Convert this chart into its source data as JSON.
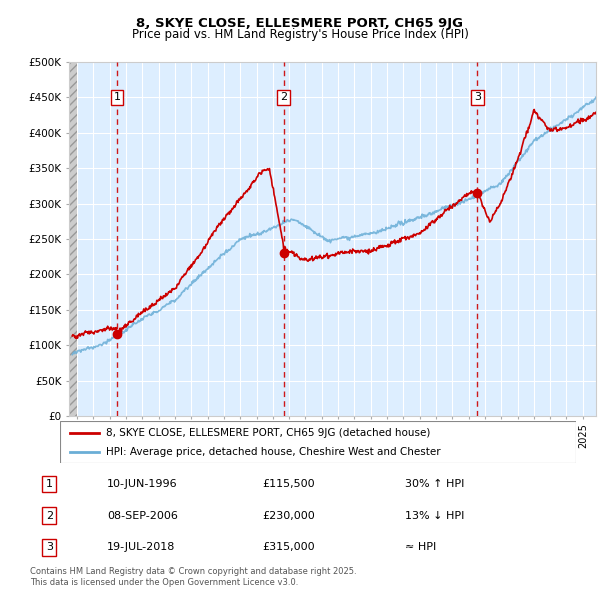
{
  "title1": "8, SKYE CLOSE, ELLESMERE PORT, CH65 9JG",
  "title2": "Price paid vs. HM Land Registry's House Price Index (HPI)",
  "ylim": [
    0,
    500000
  ],
  "yticks": [
    0,
    50000,
    100000,
    150000,
    200000,
    250000,
    300000,
    350000,
    400000,
    450000,
    500000
  ],
  "ytick_labels": [
    "£0",
    "£50K",
    "£100K",
    "£150K",
    "£200K",
    "£250K",
    "£300K",
    "£350K",
    "£400K",
    "£450K",
    "£500K"
  ],
  "sale_dates": [
    1996.44,
    2006.67,
    2018.54
  ],
  "sale_prices": [
    115500,
    230000,
    315000
  ],
  "sale_labels": [
    "1",
    "2",
    "3"
  ],
  "hpi_line_color": "#6aaed6",
  "price_line_color": "#cc0000",
  "sale_dot_color": "#cc0000",
  "vline_color": "#cc0000",
  "background_main": "#ddeeff",
  "grid_color": "#ffffff",
  "xlim_start": 1993.5,
  "xlim_end": 2025.8,
  "xtick_start": 1994,
  "xtick_end": 2025,
  "legend_line1": "8, SKYE CLOSE, ELLESMERE PORT, CH65 9JG (detached house)",
  "legend_line2": "HPI: Average price, detached house, Cheshire West and Chester",
  "annotation1_date": "10-JUN-1996",
  "annotation1_price": "£115,500",
  "annotation1_hpi": "30% ↑ HPI",
  "annotation2_date": "08-SEP-2006",
  "annotation2_price": "£230,000",
  "annotation2_hpi": "13% ↓ HPI",
  "annotation3_date": "19-JUL-2018",
  "annotation3_price": "£315,000",
  "annotation3_hpi": "≈ HPI",
  "footer": "Contains HM Land Registry data © Crown copyright and database right 2025.\nThis data is licensed under the Open Government Licence v3.0."
}
